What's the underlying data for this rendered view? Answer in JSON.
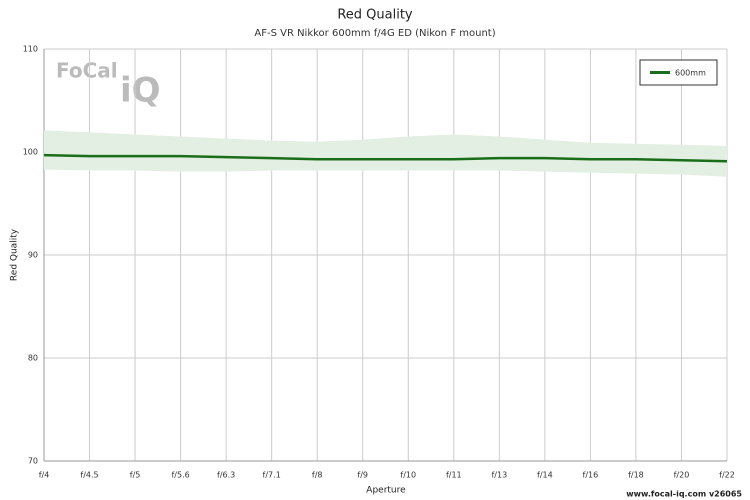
{
  "chart_data": {
    "type": "line",
    "title": "Red Quality",
    "subtitle": "AF-S VR Nikkor 600mm f/4G ED (Nikon F mount)",
    "x_label": "Aperture",
    "y_label": "Red Quality",
    "categories": [
      "f/4",
      "f/4.5",
      "f/5",
      "f/5.6",
      "f/6.3",
      "f/7.1",
      "f/8",
      "f/9",
      "f/10",
      "f/11",
      "f/13",
      "f/14",
      "f/16",
      "f/18",
      "f/20",
      "f/22"
    ],
    "series": [
      {
        "name": "600mm",
        "color": "#1a6e1a",
        "band_color": "#e2efe2",
        "values": [
          99.7,
          99.6,
          99.6,
          99.6,
          99.5,
          99.4,
          99.3,
          99.3,
          99.3,
          99.3,
          99.4,
          99.4,
          99.3,
          99.3,
          99.2,
          99.1
        ],
        "upper": [
          102.1,
          101.9,
          101.7,
          101.5,
          101.3,
          101.1,
          101.0,
          101.2,
          101.5,
          101.7,
          101.5,
          101.2,
          100.9,
          100.8,
          100.7,
          100.6
        ],
        "lower": [
          98.3,
          98.2,
          98.2,
          98.1,
          98.1,
          98.2,
          98.2,
          98.2,
          98.2,
          98.2,
          98.2,
          98.1,
          98.0,
          97.9,
          97.8,
          97.6
        ]
      }
    ],
    "ylim": [
      70,
      110
    ],
    "yticks": [
      70,
      80,
      90,
      100,
      110
    ],
    "grid": true,
    "legend": "upper right",
    "logo": [
      "FoCal",
      "iQ"
    ],
    "footer": "www.focal-iq.com  v26065"
  }
}
